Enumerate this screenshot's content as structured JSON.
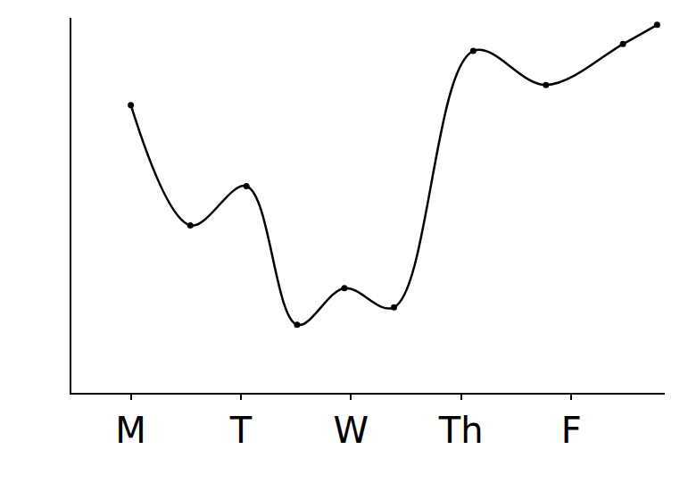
{
  "chart_data": {
    "type": "line",
    "x": [
      0,
      0.54,
      1.05,
      1.51,
      1.94,
      2.39,
      3.11,
      3.77,
      4.47,
      4.78
    ],
    "values": [
      330,
      192,
      237,
      78,
      120,
      98,
      392,
      353,
      400,
      422
    ],
    "color": "#000000",
    "marker": "circle",
    "line_style": "solid",
    "xlim": [
      -0.54,
      4.85
    ],
    "xticks": [
      {
        "value": 0,
        "label": "M"
      },
      {
        "value": 1,
        "label": "T"
      },
      {
        "value": 2,
        "label": "W"
      },
      {
        "value": 3,
        "label": "Th"
      },
      {
        "value": 4,
        "label": "F"
      }
    ],
    "ylim": [
      0,
      430
    ],
    "yticks": [],
    "tick_labels": "x",
    "grid": false
  }
}
